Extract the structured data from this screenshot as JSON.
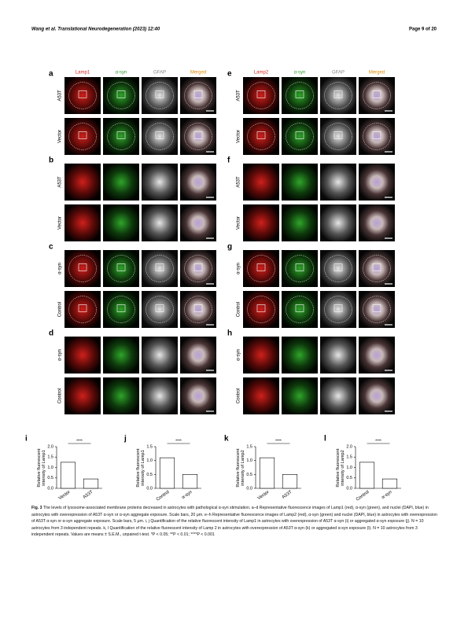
{
  "header": {
    "left": "Wang et al. Translational Neurodegeneration (2023) 12:40",
    "right": "Page 9 of 20"
  },
  "figure": {
    "panels": [
      {
        "letter": "a",
        "columns": [
          "Lamp1",
          "α-syn",
          "GFAP",
          "Merged"
        ],
        "rows": [
          "A53T",
          "Vector"
        ]
      },
      {
        "letter": "b",
        "rows": [
          "A53T",
          "Vector"
        ]
      },
      {
        "letter": "c",
        "rows": [
          "α-syn",
          "Control"
        ]
      },
      {
        "letter": "d",
        "rows": [
          "α-syn",
          "Control"
        ]
      },
      {
        "letter": "e",
        "columns": [
          "Lamp2",
          "α-syn",
          "GFAP",
          "Merged"
        ],
        "rows": [
          "A53T",
          "Vector"
        ]
      },
      {
        "letter": "f",
        "rows": [
          "A53T",
          "Vector"
        ]
      },
      {
        "letter": "g",
        "rows": [
          "α-syn",
          "Control"
        ]
      },
      {
        "letter": "h",
        "rows": [
          "α-syn",
          "Control"
        ]
      }
    ],
    "charts": [
      {
        "letter": "i",
        "ylabel": "Relative fluorescent intensity of Lamp1",
        "categories": [
          "Vector",
          "A53T"
        ],
        "values": [
          1.25,
          0.45
        ],
        "ylim": [
          0,
          2.0
        ],
        "yticks": [
          {
            "value": 0,
            "label": "0.0"
          },
          0.5,
          {
            "value": 1,
            "label": "1.0"
          },
          1.5,
          {
            "value": 2,
            "label": "2.0"
          }
        ],
        "significance": "****"
      },
      {
        "letter": "j",
        "ylabel": "Relative fluorescent intensity of Lamp1",
        "categories": [
          "Control",
          "α-syn"
        ],
        "values": [
          1.1,
          0.5
        ],
        "ylim": [
          0,
          1.5
        ],
        "yticks": [
          {
            "value": 0,
            "label": "0.0"
          },
          0.5,
          {
            "value": 1,
            "label": "1.0"
          },
          1.5
        ],
        "significance": "****"
      },
      {
        "letter": "k",
        "ylabel": "Relative fluorescent intensity of Lamp2",
        "categories": [
          "Vector",
          "A53T"
        ],
        "values": [
          1.1,
          0.5
        ],
        "ylim": [
          0,
          1.5
        ],
        "yticks": [
          {
            "value": 0,
            "label": "0.0"
          },
          0.5,
          {
            "value": 1,
            "label": "1.0"
          },
          1.5
        ],
        "significance": "****"
      },
      {
        "letter": "l",
        "ylabel": "Relative fluorescent intensity of Lamp2",
        "categories": [
          "Control",
          "α-syn"
        ],
        "values": [
          1.25,
          0.45
        ],
        "ylim": [
          0,
          2.0
        ],
        "yticks": [
          {
            "value": 0,
            "label": "0.0"
          },
          0.5,
          {
            "value": 1,
            "label": "1.0"
          },
          1.5,
          {
            "value": 2,
            "label": "2.0"
          }
        ],
        "significance": "****"
      }
    ]
  },
  "caption": {
    "label": "Fig. 3",
    "text": "The levels of lysosome-associated membrane proteins decreased in astrocytes with pathological α-syn stimulation. a–d Representative fluorescence images of Lamp1 (red), α-syn (green), and nuclei (DAPI, blue) in astrocytes with overexpression of A53T α-syn or α-syn aggregate exposure. Scale bars, 20 μm. e–h Representative fluorescence images of Lamp2 (red), α-syn (green) and nuclei (DAPI, blue) in astrocytes with overexpression of A53T α-syn or α-syn aggregate exposure. Scale bars, 5 μm. i, j Quantification of the relative fluorescent intensity of Lamp1 in astrocytes with overexpression of A53T α-syn (i) or aggregated α-syn exposure (j). N = 10 astrocytes from 3 independent repeats. k, l Quantification of the relative fluorescent intensity of Lamp 2 in astrocytes with overexpression of A53T α-syn (k) or aggregated α-syn exposure (l). N = 10 astrocytes from 3 independent repeats. Values are means ± S.E.M., unpaired t-test. *P < 0.05; **P < 0.01; ****P < 0.001"
  }
}
